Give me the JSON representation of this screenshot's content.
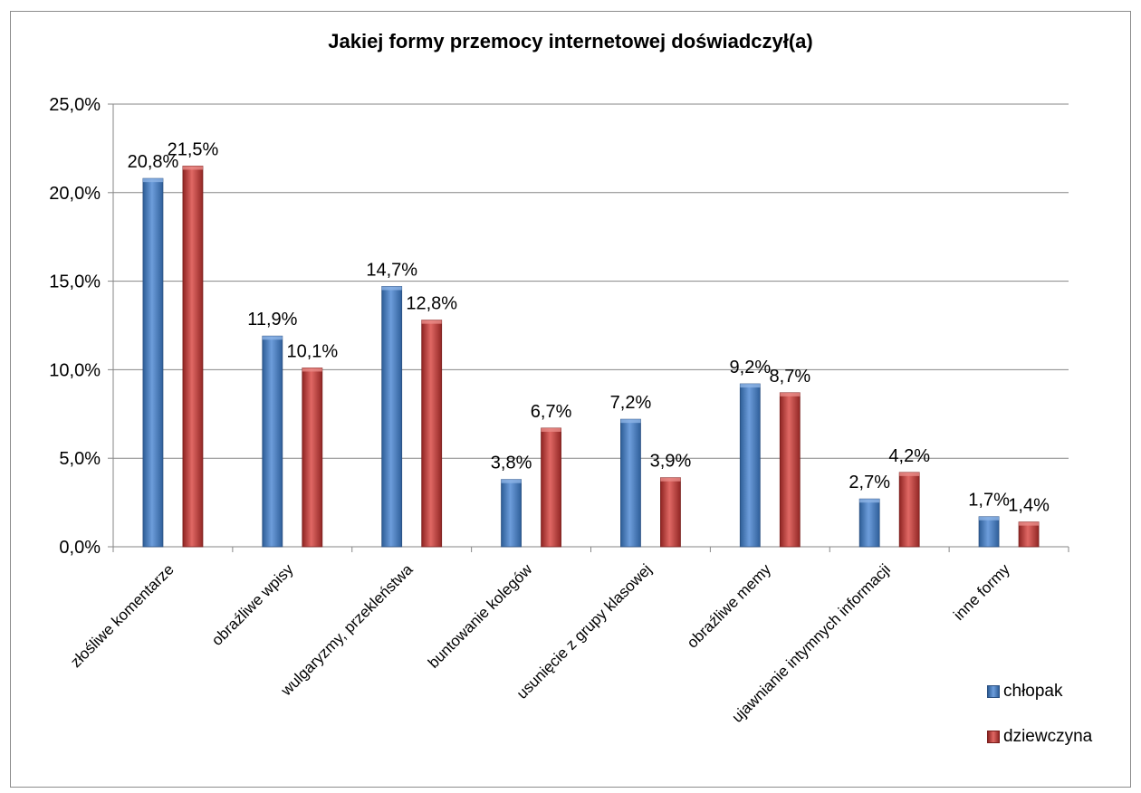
{
  "chart_data": {
    "type": "bar",
    "title": "Jakiej formy przemocy internetowej doświadczył(a)",
    "categories": [
      "złośliwe komentarze",
      "obraźliwe wpisy",
      "wulgaryzmy, przekleństwa",
      "buntowanie kolegów",
      "usunięcie z grupy klasowej",
      "obraźliwe memy",
      "ujawnianie intymnych informacji",
      "inne formy"
    ],
    "series": [
      {
        "name": "chłopak",
        "color": "#4f81bd",
        "values": [
          20.8,
          11.9,
          14.7,
          3.8,
          7.2,
          9.2,
          2.7,
          1.7
        ],
        "labels": [
          "20,8%",
          "11,9%",
          "14,7%",
          "3,8%",
          "7,2%",
          "9,2%",
          "2,7%",
          "1,7%"
        ]
      },
      {
        "name": "dziewczyna",
        "color": "#c0504d",
        "values": [
          21.5,
          10.1,
          12.8,
          6.7,
          3.9,
          8.7,
          4.2,
          1.4
        ],
        "labels": [
          "21,5%",
          "10,1%",
          "12,8%",
          "6,7%",
          "3,9%",
          "8,7%",
          "4,2%",
          "1,4%"
        ]
      }
    ],
    "ylim": [
      0,
      25
    ],
    "yticks": [
      0,
      5,
      10,
      15,
      20,
      25
    ],
    "ytick_labels": [
      "0,0%",
      "5,0%",
      "10,0%",
      "15,0%",
      "20,0%",
      "25,0%"
    ],
    "xlabel": "",
    "ylabel": "",
    "grid": true,
    "legend_position": "right"
  }
}
